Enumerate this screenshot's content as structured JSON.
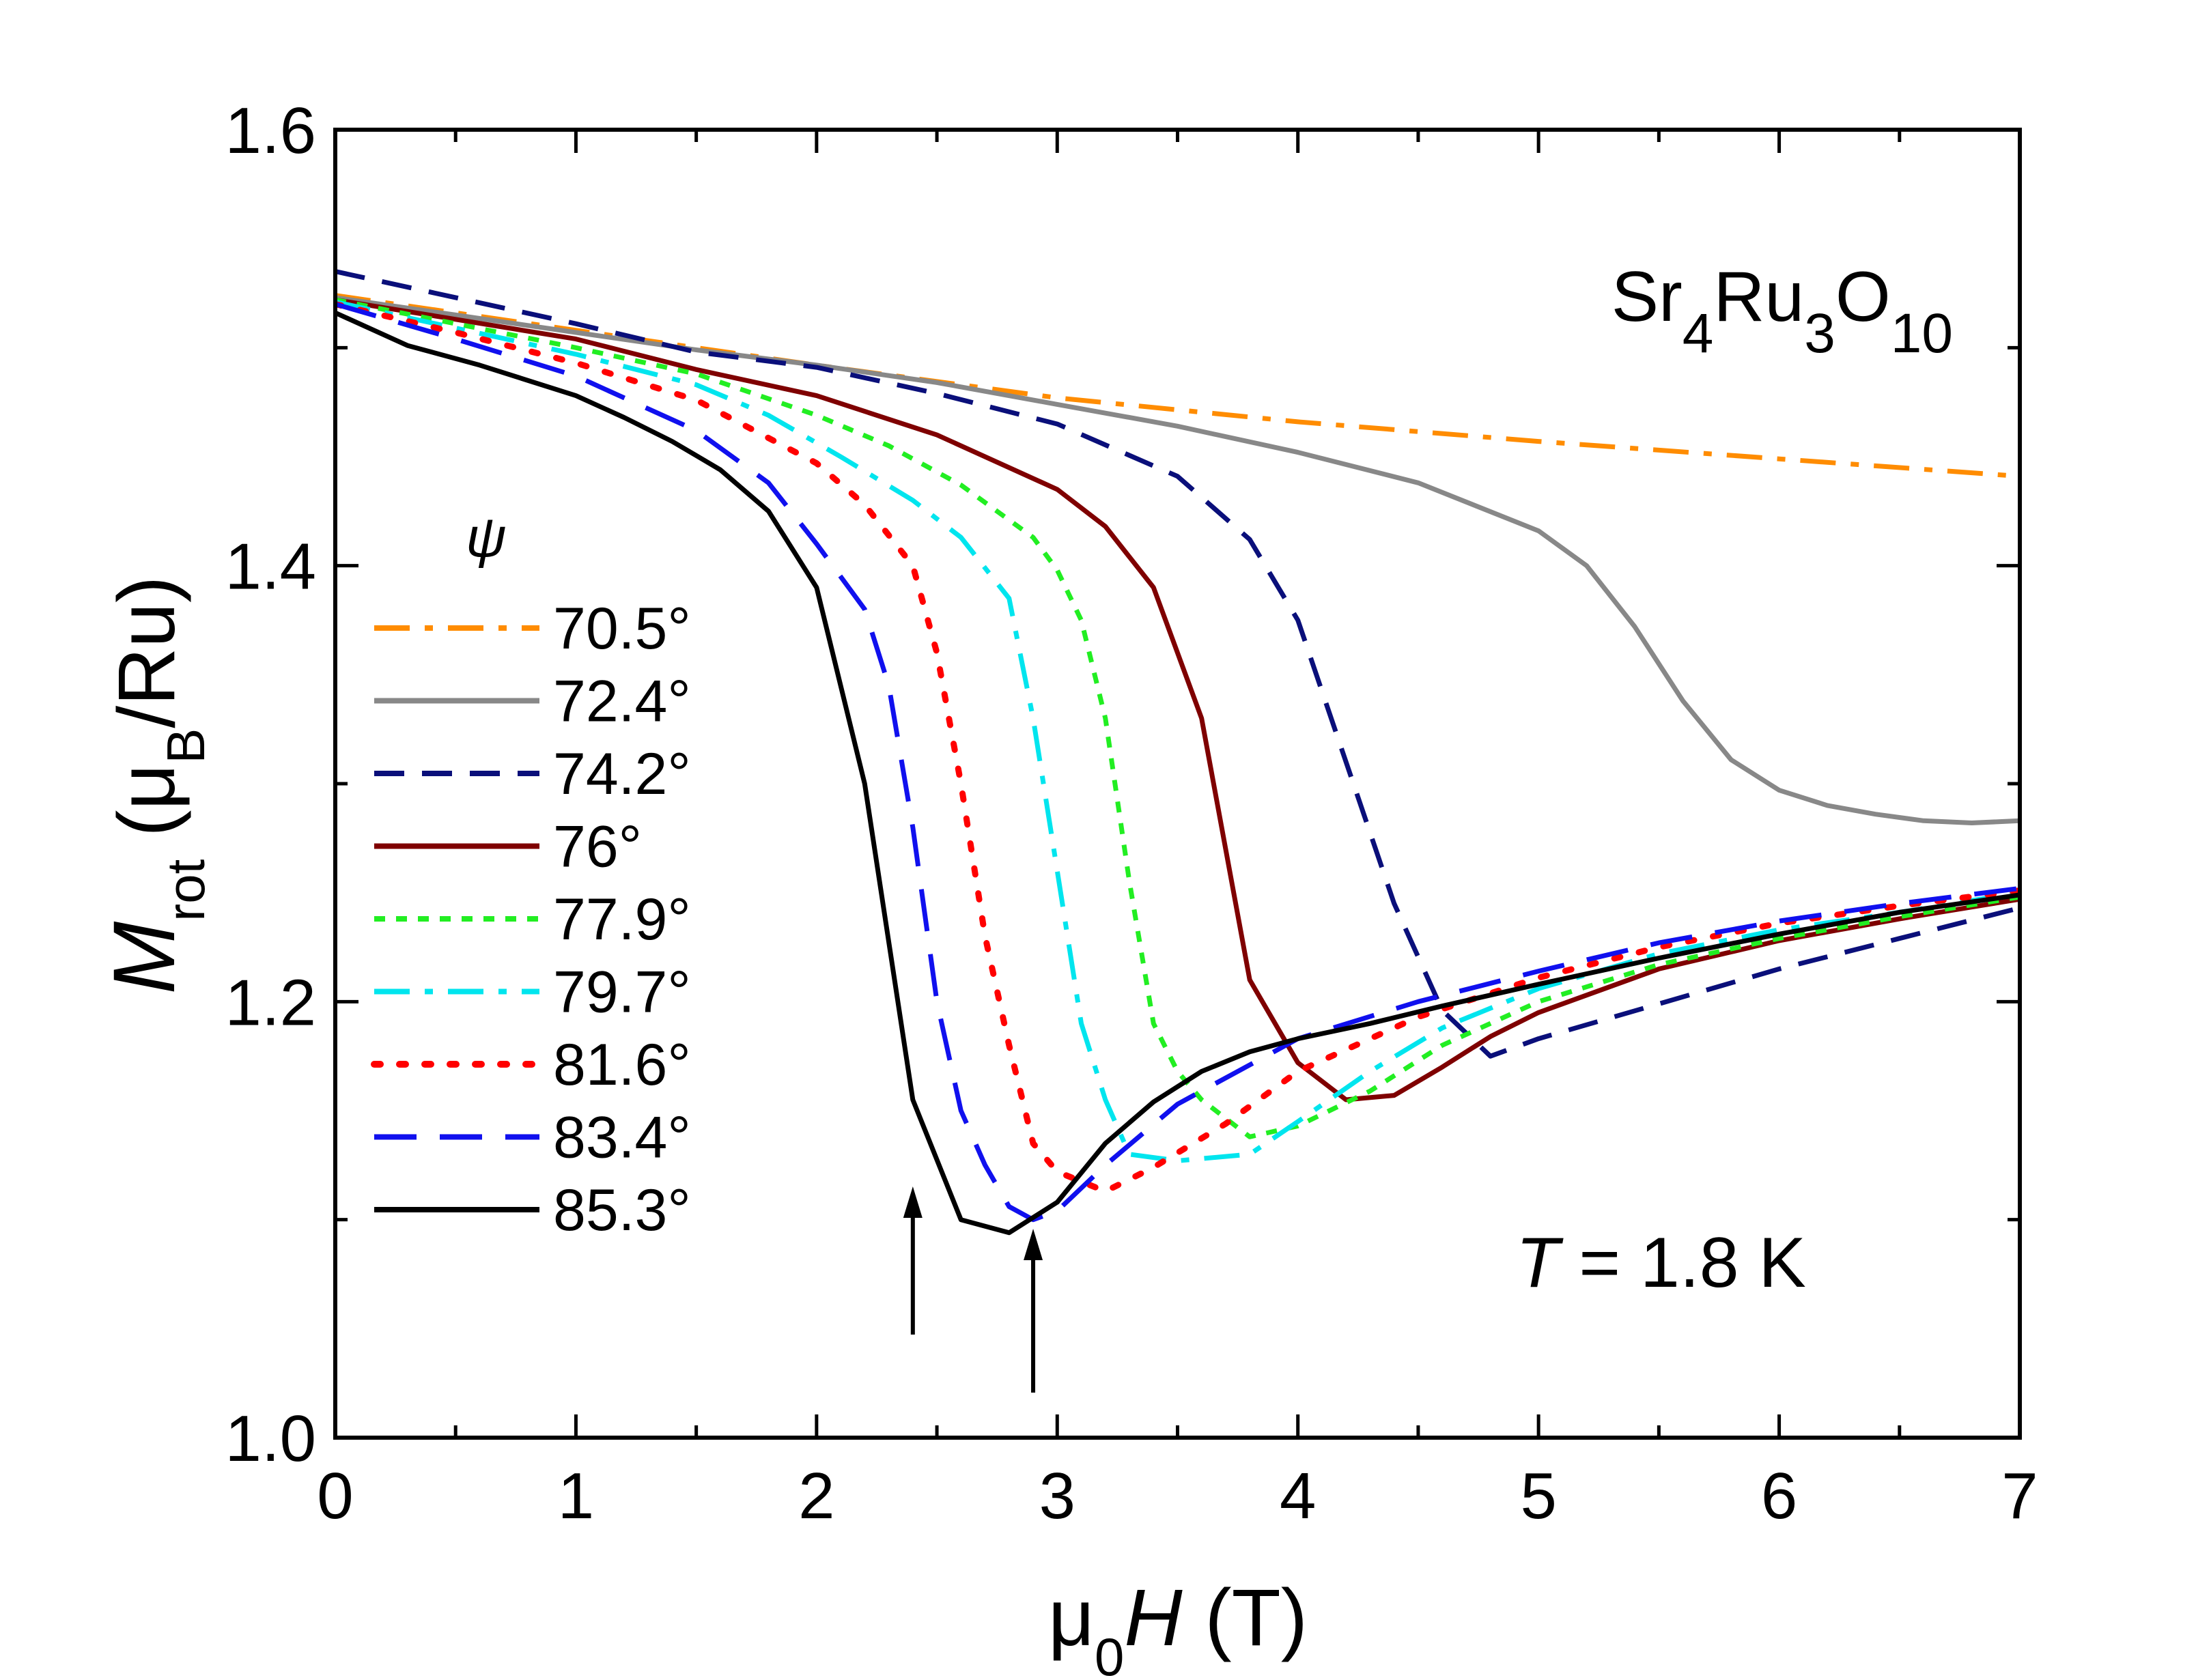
{
  "chart_data": {
    "type": "line",
    "title": "",
    "xlabel": {
      "prefix": "μ",
      "sub": "0",
      "italic": "H",
      "suffix": " (T)"
    },
    "ylabel": {
      "italic": "M",
      "sub": "rot",
      "mid": " (μ",
      "sub2": "B",
      "suffix": "/Ru)"
    },
    "xlim": [
      0,
      7
    ],
    "ylim": [
      1.0,
      1.6
    ],
    "xticks": [
      "0",
      "1",
      "2",
      "3",
      "4",
      "5",
      "6",
      "7"
    ],
    "yticks": [
      "1.0",
      "1.2",
      "1.4",
      "1.6"
    ],
    "grid": false,
    "legend_title": "ψ",
    "legend_position": "middle-left",
    "annotations": {
      "compound": {
        "p1": "Sr",
        "s1": "4",
        "p2": "Ru",
        "s2": "3",
        "p3": "O",
        "s3": "10"
      },
      "temperature": {
        "var": "T",
        "rest": " = 1.8 K"
      },
      "arrows_at_field": [
        2.4,
        2.9
      ]
    },
    "series": [
      {
        "name": "70.5°",
        "color": "#ff8c00",
        "dash": "dashdot",
        "x": [
          0,
          1,
          2,
          3,
          4,
          5,
          6,
          7
        ],
        "y": [
          1.524,
          1.508,
          1.492,
          1.477,
          1.466,
          1.457,
          1.449,
          1.441
        ]
      },
      {
        "name": "72.4°",
        "color": "#888888",
        "dash": "solid",
        "x": [
          0,
          0.5,
          1,
          1.5,
          2,
          2.5,
          3,
          3.5,
          4,
          4.5,
          5,
          5.2,
          5.4,
          5.6,
          5.8,
          6,
          6.2,
          6.4,
          6.6,
          6.8,
          7
        ],
        "y": [
          1.523,
          1.515,
          1.507,
          1.499,
          1.492,
          1.484,
          1.474,
          1.464,
          1.452,
          1.438,
          1.416,
          1.4,
          1.372,
          1.338,
          1.311,
          1.297,
          1.29,
          1.286,
          1.283,
          1.282,
          1.283
        ]
      },
      {
        "name": "74.2°",
        "color": "#0a0f7a",
        "dash": "dashed",
        "x": [
          0,
          0.5,
          1,
          1.5,
          2,
          2.5,
          3,
          3.5,
          3.8,
          4,
          4.2,
          4.4,
          4.6,
          4.8,
          5,
          5.5,
          6,
          6.5,
          7
        ],
        "y": [
          1.535,
          1.523,
          1.511,
          1.498,
          1.491,
          1.479,
          1.465,
          1.441,
          1.412,
          1.375,
          1.31,
          1.245,
          1.196,
          1.175,
          1.183,
          1.199,
          1.215,
          1.229,
          1.243
        ]
      },
      {
        "name": "76°",
        "color": "#7f0000",
        "dash": "solid",
        "x": [
          0,
          0.5,
          1,
          1.5,
          2,
          2.5,
          3,
          3.2,
          3.4,
          3.6,
          3.8,
          4,
          4.2,
          4.4,
          4.6,
          4.8,
          5,
          5.5,
          6,
          6.5,
          7
        ],
        "y": [
          1.522,
          1.513,
          1.504,
          1.49,
          1.478,
          1.46,
          1.435,
          1.418,
          1.39,
          1.33,
          1.21,
          1.172,
          1.155,
          1.157,
          1.17,
          1.184,
          1.195,
          1.215,
          1.228,
          1.238,
          1.247
        ]
      },
      {
        "name": "77.9°",
        "color": "#22ee22",
        "dash": "dotted",
        "x": [
          0,
          0.5,
          1,
          1.5,
          2,
          2.3,
          2.6,
          2.9,
          3,
          3.1,
          3.2,
          3.3,
          3.4,
          3.5,
          3.6,
          3.8,
          4,
          4.3,
          4.6,
          5,
          5.5,
          6,
          6.5,
          7
        ],
        "y": [
          1.522,
          1.511,
          1.5,
          1.488,
          1.469,
          1.455,
          1.437,
          1.413,
          1.398,
          1.375,
          1.33,
          1.255,
          1.19,
          1.168,
          1.155,
          1.138,
          1.143,
          1.159,
          1.18,
          1.2,
          1.217,
          1.229,
          1.239,
          1.248
        ]
      },
      {
        "name": "79.7°",
        "color": "#00e5ee",
        "dash": "dashdot",
        "x": [
          0,
          0.5,
          1,
          1.5,
          1.8,
          2.1,
          2.4,
          2.6,
          2.8,
          2.9,
          3,
          3.1,
          3.2,
          3.3,
          3.5,
          3.8,
          4,
          4.3,
          4.6,
          5,
          5.5,
          6,
          6.5,
          7
        ],
        "y": [
          1.521,
          1.509,
          1.497,
          1.483,
          1.469,
          1.45,
          1.43,
          1.413,
          1.385,
          1.33,
          1.26,
          1.19,
          1.155,
          1.13,
          1.127,
          1.13,
          1.145,
          1.168,
          1.188,
          1.206,
          1.222,
          1.233,
          1.241,
          1.25
        ]
      },
      {
        "name": "81.6°",
        "color": "#ff0000",
        "dash": "dots",
        "x": [
          0,
          0.5,
          1,
          1.5,
          2,
          2.2,
          2.4,
          2.5,
          2.6,
          2.7,
          2.8,
          2.9,
          3,
          3.2,
          3.4,
          3.7,
          4,
          4.5,
          5,
          5.5,
          6,
          6.5,
          7
        ],
        "y": [
          1.52,
          1.507,
          1.493,
          1.476,
          1.447,
          1.428,
          1.4,
          1.36,
          1.3,
          1.23,
          1.18,
          1.135,
          1.122,
          1.113,
          1.124,
          1.144,
          1.168,
          1.193,
          1.211,
          1.225,
          1.236,
          1.244,
          1.251
        ]
      },
      {
        "name": "83.4°",
        "color": "#1010ee",
        "dash": "longdash",
        "x": [
          0,
          0.5,
          1,
          1.5,
          1.8,
          2,
          2.2,
          2.3,
          2.4,
          2.5,
          2.6,
          2.7,
          2.8,
          2.9,
          3,
          3.2,
          3.5,
          4,
          4.5,
          5,
          5.5,
          6,
          6.5,
          7
        ],
        "y": [
          1.52,
          1.504,
          1.487,
          1.462,
          1.438,
          1.41,
          1.38,
          1.345,
          1.28,
          1.2,
          1.15,
          1.125,
          1.106,
          1.1,
          1.104,
          1.125,
          1.153,
          1.183,
          1.2,
          1.214,
          1.227,
          1.237,
          1.245,
          1.252
        ]
      },
      {
        "name": "85.3°",
        "color": "#000000",
        "dash": "solid",
        "x": [
          0,
          0.3,
          0.6,
          1,
          1.2,
          1.4,
          1.6,
          1.8,
          2,
          2.2,
          2.4,
          2.6,
          2.8,
          3,
          3.2,
          3.4,
          3.6,
          3.8,
          4,
          4.3,
          4.6,
          5,
          5.5,
          6,
          6.5,
          7
        ],
        "y": [
          1.516,
          1.501,
          1.492,
          1.478,
          1.468,
          1.457,
          1.444,
          1.425,
          1.39,
          1.3,
          1.155,
          1.1,
          1.094,
          1.108,
          1.135,
          1.154,
          1.168,
          1.177,
          1.183,
          1.19,
          1.198,
          1.208,
          1.22,
          1.231,
          1.241,
          1.249
        ]
      }
    ]
  }
}
